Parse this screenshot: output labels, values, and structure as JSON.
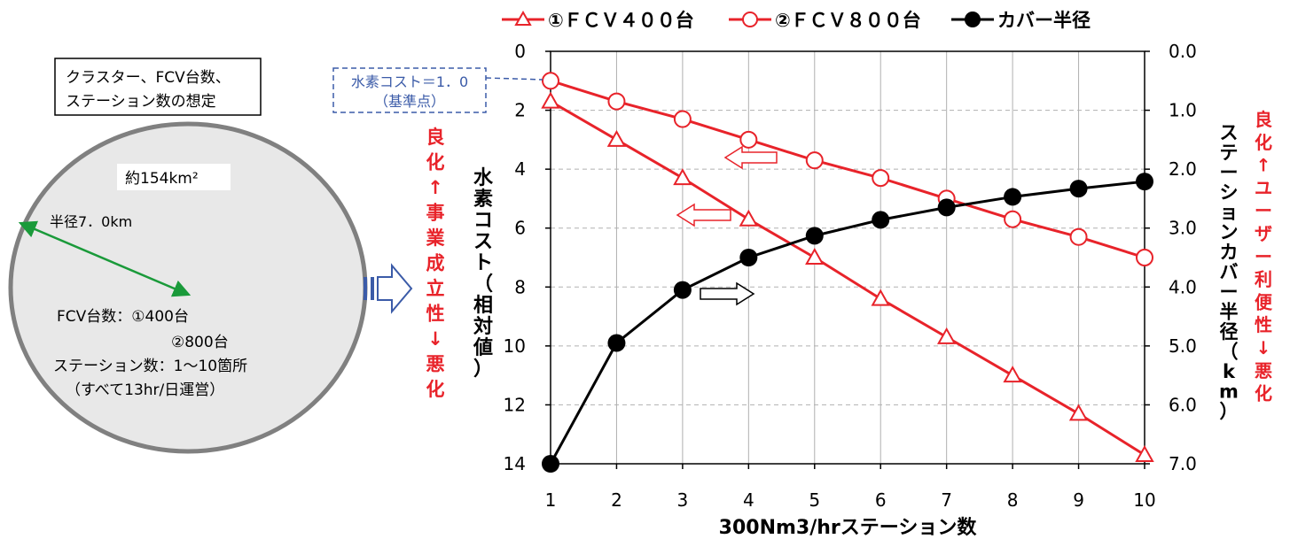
{
  "left_panel": {
    "assumption_title_line1": "クラスター、FCV台数、",
    "assumption_title_line2": "ステーション数の想定",
    "area_label": "約154km²",
    "radius_label": "半径7．0km",
    "fcv_label": "FCV台数：①400台",
    "fcv_label2": "②800台",
    "station_label": "ステーション数：1～10箇所",
    "operation_label": "（すべて13hr/日運営）"
  },
  "callout": {
    "line1": "水素コスト＝1．0",
    "line2": "（基準点）"
  },
  "left_side_note": [
    "良",
    "化",
    "↑",
    "事",
    "業",
    "成",
    "立",
    "性",
    "↓",
    "悪",
    "化"
  ],
  "right_side_note": [
    "良",
    "化",
    "↑",
    "ユ",
    "ー",
    "ザ",
    "ー",
    "利",
    "便",
    "性",
    "↓",
    "悪",
    "化"
  ],
  "colors": {
    "red": "#e8232a",
    "black": "#000000",
    "green": "#1a9a3a",
    "blue_dash": "#3b5ba8",
    "circle_fill": "#e8e8e8",
    "circle_stroke": "#808080",
    "grid": "#b0b0b0"
  },
  "chart_data": {
    "type": "line",
    "x": [
      1,
      2,
      3,
      4,
      5,
      6,
      7,
      8,
      9,
      10
    ],
    "xlabel": "300Nm3/hrステーション数",
    "ylabel_left": "水素コスト（相対値）",
    "ylabel_right": "ステーションカバー半径（km）",
    "ylim_left": [
      0,
      14
    ],
    "ylim_left_inverted": true,
    "yticks_left": [
      "0",
      "2",
      "4",
      "6",
      "8",
      "10",
      "12",
      "14"
    ],
    "ylim_right": [
      0,
      7
    ],
    "ylim_right_inverted": true,
    "yticks_right": [
      "0.0",
      "1.0",
      "2.0",
      "3.0",
      "4.0",
      "5.0",
      "6.0",
      "7.0"
    ],
    "xticks": [
      "1",
      "2",
      "3",
      "4",
      "5",
      "6",
      "7",
      "8",
      "9",
      "10"
    ],
    "grid": true,
    "legend_position": "top",
    "series": [
      {
        "name": "①ＦＣＶ４００台",
        "axis": "left",
        "marker": "triangle-open",
        "color": "#e8232a",
        "values": [
          1.7,
          3.0,
          4.3,
          5.7,
          7.0,
          8.4,
          9.7,
          11.0,
          12.3,
          13.7
        ]
      },
      {
        "name": "②ＦＣＶ８００台",
        "axis": "left",
        "marker": "circle-open",
        "color": "#e8232a",
        "values": [
          1.0,
          1.7,
          2.3,
          3.0,
          3.7,
          4.3,
          5.0,
          5.7,
          6.3,
          7.0
        ]
      },
      {
        "name": "カバー半径",
        "axis": "right",
        "marker": "circle-filled",
        "color": "#000000",
        "values": [
          7.0,
          4.95,
          4.05,
          3.5,
          3.13,
          2.86,
          2.65,
          2.47,
          2.33,
          2.21
        ]
      }
    ]
  }
}
